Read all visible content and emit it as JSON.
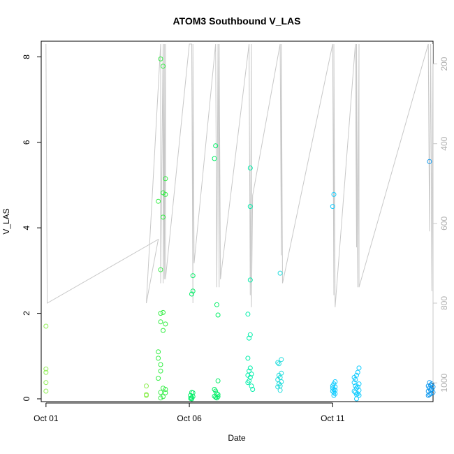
{
  "chart_data": {
    "type": "scatter",
    "title": "ATOM3 Southbound V_LAS",
    "xlabel": "Date",
    "ylabel": "V_LAS",
    "x_ticks": [
      "Oct 01",
      "Oct 06",
      "Oct 11"
    ],
    "x_tick_dates": [
      "2014-10-01",
      "2014-10-06",
      "2014-10-11"
    ],
    "xlim": [
      "2014-09-30 20:00",
      "2014-10-14 12:00"
    ],
    "ylim": [
      0,
      8.3
    ],
    "y_ticks": [
      0,
      2,
      4,
      6,
      8
    ],
    "y2_ticks": [
      200,
      400,
      600,
      800,
      1000
    ],
    "y2lim": [
      1040,
      150
    ],
    "y2_color": "#c8c8c8",
    "grid": false,
    "legend": "none",
    "point_colors": [
      "#90ee55",
      "#33ee44",
      "#00ee66",
      "#00eeaa",
      "#22dddd",
      "#11ccff",
      "#1199ee"
    ],
    "series": [
      {
        "points": [
          [
            "2014-10-01 00:00",
            1.7
          ],
          [
            "2014-10-01 00:00",
            0.7
          ],
          [
            "2014-10-01 00:00",
            0.62
          ],
          [
            "2014-10-01 00:00",
            0.38
          ],
          [
            "2014-10-01 00:00",
            0.18
          ],
          [
            "2014-10-04 12:00",
            0.3
          ],
          [
            "2014-10-04 12:00",
            0.1
          ],
          [
            "2014-10-04 12:00",
            0.08
          ]
        ]
      },
      {
        "points": [
          [
            "2014-10-05 00:00",
            7.95
          ],
          [
            "2014-10-05 02:00",
            7.78
          ],
          [
            "2014-10-05 04:00",
            5.15
          ],
          [
            "2014-10-05 02:00",
            4.82
          ],
          [
            "2014-10-05 04:00",
            4.78
          ],
          [
            "2014-10-04 22:00",
            4.62
          ],
          [
            "2014-10-05 02:00",
            4.25
          ],
          [
            "2014-10-05 00:00",
            3.02
          ],
          [
            "2014-10-05 02:00",
            2.02
          ],
          [
            "2014-10-05 00:00",
            2.0
          ],
          [
            "2014-10-05 00:00",
            1.8
          ],
          [
            "2014-10-05 04:00",
            1.75
          ],
          [
            "2014-10-05 02:00",
            1.6
          ],
          [
            "2014-10-04 22:00",
            1.1
          ],
          [
            "2014-10-04 22:00",
            0.95
          ],
          [
            "2014-10-05 00:00",
            0.8
          ],
          [
            "2014-10-05 00:00",
            0.65
          ],
          [
            "2014-10-04 22:00",
            0.48
          ],
          [
            "2014-10-05 02:00",
            0.25
          ],
          [
            "2014-10-05 04:00",
            0.22
          ],
          [
            "2014-10-05 00:00",
            0.15
          ],
          [
            "2014-10-05 04:00",
            0.14
          ],
          [
            "2014-10-05 02:00",
            0.05
          ],
          [
            "2014-10-05 00:00",
            0.02
          ]
        ]
      },
      {
        "points": [
          [
            "2014-10-06 03:00",
            2.88
          ],
          [
            "2014-10-06 03:00",
            2.52
          ],
          [
            "2014-10-06 02:00",
            2.45
          ],
          [
            "2014-10-06 02:00",
            0.15
          ],
          [
            "2014-10-06 03:00",
            0.14
          ],
          [
            "2014-10-06 01:00",
            0.08
          ],
          [
            "2014-10-06 03:00",
            0.05
          ],
          [
            "2014-10-06 02:00",
            0.03
          ],
          [
            "2014-10-06 01:00",
            0.01
          ],
          [
            "2014-10-06 02:00",
            0.0
          ],
          [
            "2014-10-06 22:00",
            5.92
          ],
          [
            "2014-10-06 21:00",
            5.62
          ],
          [
            "2014-10-06 23:00",
            2.2
          ],
          [
            "2014-10-07 00:00",
            1.96
          ],
          [
            "2014-10-07 00:00",
            0.42
          ],
          [
            "2014-10-06 21:00",
            0.22
          ],
          [
            "2014-10-06 22:00",
            0.18
          ],
          [
            "2014-10-06 23:00",
            0.12
          ],
          [
            "2014-10-07 00:00",
            0.1
          ],
          [
            "2014-10-06 21:00",
            0.06
          ],
          [
            "2014-10-06 22:00",
            0.04
          ],
          [
            "2014-10-07 00:00",
            0.05
          ],
          [
            "2014-10-06 23:00",
            0.02
          ]
        ]
      },
      {
        "points": [
          [
            "2014-10-08 03:00",
            5.4
          ],
          [
            "2014-10-08 03:00",
            4.5
          ],
          [
            "2014-10-08 03:00",
            2.78
          ],
          [
            "2014-10-08 01:00",
            1.98
          ],
          [
            "2014-10-08 03:00",
            1.5
          ],
          [
            "2014-10-08 02:00",
            1.42
          ],
          [
            "2014-10-08 01:00",
            0.95
          ],
          [
            "2014-10-08 03:00",
            0.72
          ],
          [
            "2014-10-08 02:00",
            0.65
          ],
          [
            "2014-10-08 04:00",
            0.58
          ],
          [
            "2014-10-08 01:00",
            0.55
          ],
          [
            "2014-10-08 03:00",
            0.5
          ],
          [
            "2014-10-08 02:00",
            0.42
          ],
          [
            "2014-10-08 01:00",
            0.38
          ],
          [
            "2014-10-08 04:00",
            0.3
          ],
          [
            "2014-10-08 05:00",
            0.22
          ]
        ]
      },
      {
        "points": [
          [
            "2014-10-09 04:00",
            2.94
          ],
          [
            "2014-10-09 05:00",
            0.92
          ],
          [
            "2014-10-09 02:00",
            0.85
          ],
          [
            "2014-10-09 03:00",
            0.82
          ],
          [
            "2014-10-09 05:00",
            0.6
          ],
          [
            "2014-10-09 03:00",
            0.55
          ],
          [
            "2014-10-09 04:00",
            0.5
          ],
          [
            "2014-10-09 02:00",
            0.45
          ],
          [
            "2014-10-09 05:00",
            0.4
          ],
          [
            "2014-10-09 03:00",
            0.35
          ],
          [
            "2014-10-09 04:00",
            0.3
          ],
          [
            "2014-10-09 02:00",
            0.28
          ],
          [
            "2014-10-09 04:00",
            0.2
          ]
        ]
      },
      {
        "points": [
          [
            "2014-10-11 01:00",
            4.78
          ],
          [
            "2014-10-11 00:00",
            4.5
          ],
          [
            "2014-10-11 02:00",
            0.4
          ],
          [
            "2014-10-11 01:00",
            0.35
          ],
          [
            "2014-10-11 00:00",
            0.3
          ],
          [
            "2014-10-11 02:00",
            0.28
          ],
          [
            "2014-10-11 00:00",
            0.25
          ],
          [
            "2014-10-11 01:00",
            0.22
          ],
          [
            "2014-10-11 02:00",
            0.2
          ],
          [
            "2014-10-11 00:00",
            0.18
          ],
          [
            "2014-10-11 01:00",
            0.15
          ],
          [
            "2014-10-11 02:00",
            0.12
          ],
          [
            "2014-10-11 01:00",
            0.08
          ],
          [
            "2014-10-11 18:00",
            0.5
          ],
          [
            "2014-10-11 22:00",
            0.72
          ],
          [
            "2014-10-11 21:00",
            0.62
          ],
          [
            "2014-10-11 20:00",
            0.55
          ],
          [
            "2014-10-11 19:00",
            0.45
          ],
          [
            "2014-10-11 18:00",
            0.38
          ],
          [
            "2014-10-11 22:00",
            0.35
          ],
          [
            "2014-10-11 19:00",
            0.3
          ],
          [
            "2014-10-11 21:00",
            0.28
          ],
          [
            "2014-10-11 20:00",
            0.25
          ],
          [
            "2014-10-11 22:00",
            0.2
          ],
          [
            "2014-10-11 18:00",
            0.18
          ],
          [
            "2014-10-11 19:00",
            0.15
          ],
          [
            "2014-10-11 21:00",
            0.12
          ],
          [
            "2014-10-11 20:00",
            0.1
          ],
          [
            "2014-10-11 22:00",
            0.08
          ],
          [
            "2014-10-11 20:00",
            0.0
          ]
        ]
      },
      {
        "points": [
          [
            "2014-10-14 09:00",
            5.55
          ],
          [
            "2014-10-14 09:00",
            0.38
          ],
          [
            "2014-10-14 11:00",
            0.35
          ],
          [
            "2014-10-14 10:00",
            0.32
          ],
          [
            "2014-10-14 08:00",
            0.3
          ],
          [
            "2014-10-14 12:00",
            0.28
          ],
          [
            "2014-10-14 09:00",
            0.25
          ],
          [
            "2014-10-14 11:00",
            0.22
          ],
          [
            "2014-10-14 10:00",
            0.2
          ],
          [
            "2014-10-14 08:00",
            0.18
          ],
          [
            "2014-10-14 12:00",
            0.15
          ],
          [
            "2014-10-14 10:00",
            0.12
          ],
          [
            "2014-10-14 09:00",
            0.1
          ],
          [
            "2014-10-14 08:00",
            0.08
          ]
        ]
      }
    ],
    "secondary_line": {
      "color": "#c8c8c8",
      "points": [
        [
          "2014-10-01 00:00",
          150
        ],
        [
          "2014-10-01 00:00",
          150
        ],
        [
          "2014-10-01 01:00",
          800
        ],
        [
          "2014-10-04 22:00",
          640
        ],
        [
          "2014-10-04 12:00",
          800
        ],
        [
          "2014-10-05 00:00",
          150
        ],
        [
          "2014-10-05 00:00",
          150
        ],
        [
          "2014-10-05 00:00",
          750
        ],
        [
          "2014-10-05 02:00",
          150
        ],
        [
          "2014-10-05 02:00",
          750
        ],
        [
          "2014-10-05 03:00",
          150
        ],
        [
          "2014-10-05 03:00",
          740
        ],
        [
          "2014-10-05 04:00",
          150
        ],
        [
          "2014-10-05 04:00",
          740
        ],
        [
          "2014-10-06 00:00",
          150
        ],
        [
          "2014-10-06 02:00",
          150
        ],
        [
          "2014-10-06 03:00",
          800
        ],
        [
          "2014-10-06 03:00",
          150
        ],
        [
          "2014-10-06 04:00",
          700
        ],
        [
          "2014-10-06 22:00",
          150
        ],
        [
          "2014-10-06 23:00",
          760
        ],
        [
          "2014-10-07 00:00",
          150
        ],
        [
          "2014-10-07 01:00",
          760
        ],
        [
          "2014-10-07 01:00",
          150
        ],
        [
          "2014-10-07 02:00",
          740
        ],
        [
          "2014-10-08 02:00",
          150
        ],
        [
          "2014-10-08 03:00",
          780
        ],
        [
          "2014-10-08 04:00",
          150
        ],
        [
          "2014-10-08 04:00",
          810
        ],
        [
          "2014-10-08 05:00",
          530
        ],
        [
          "2014-10-09 04:00",
          150
        ],
        [
          "2014-10-09 05:00",
          680
        ],
        [
          "2014-10-09 05:00",
          150
        ],
        [
          "2014-10-09 06:00",
          750
        ],
        [
          "2014-10-11 00:00",
          150
        ],
        [
          "2014-10-11 01:00",
          780
        ],
        [
          "2014-10-11 01:00",
          150
        ],
        [
          "2014-10-11 02:00",
          810
        ],
        [
          "2014-10-11 19:00",
          150
        ],
        [
          "2014-10-11 20:00",
          660
        ],
        [
          "2014-10-11 20:00",
          150
        ],
        [
          "2014-10-11 21:00",
          760
        ],
        [
          "2014-10-11 22:00",
          150
        ],
        [
          "2014-10-11 22:00",
          760
        ],
        [
          "2014-10-14 08:00",
          150
        ],
        [
          "2014-10-14 09:00",
          620
        ],
        [
          "2014-10-14 10:00",
          150
        ],
        [
          "2014-10-14 11:00",
          770
        ],
        [
          "2014-10-14 12:00",
          150
        ],
        [
          "2014-10-14 12:00",
          650
        ]
      ]
    }
  }
}
